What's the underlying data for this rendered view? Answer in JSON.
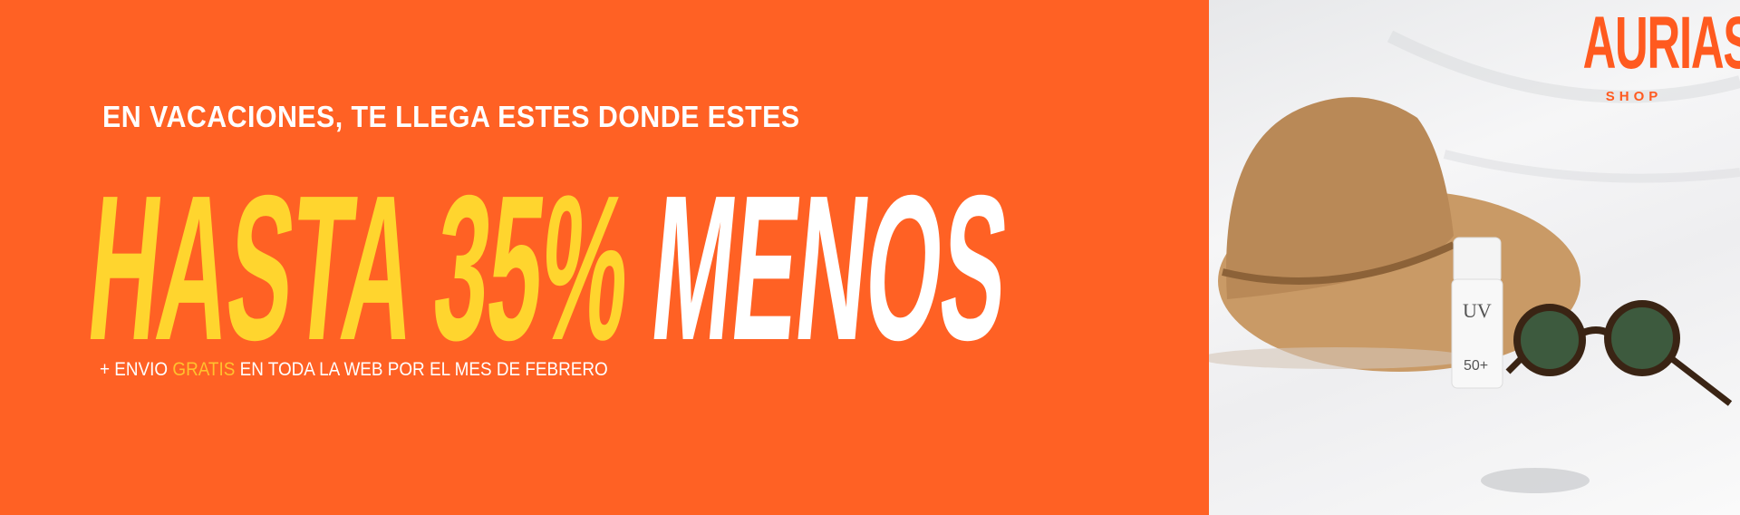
{
  "banner": {
    "subtitle": "EN VACACIONES, TE LLEGA ESTES DONDE ESTES",
    "headline_yellow": "HASTA 35%",
    "headline_white": "MENOS",
    "footnote_prefix": "+ ENVIO",
    "footnote_highlight": "GRATIS",
    "footnote_suffix": "EN TODA LA WEB POR EL MES DE FEBRERO"
  },
  "logo": {
    "name": "AURIAS",
    "tagline": "SHOP"
  },
  "product": {
    "bottle_label": "UV",
    "bottle_spf": "50+"
  },
  "colors": {
    "background": "#ff6124",
    "yellow": "#ffd52e",
    "white": "#ffffff",
    "brand": "#ff5a1f"
  }
}
